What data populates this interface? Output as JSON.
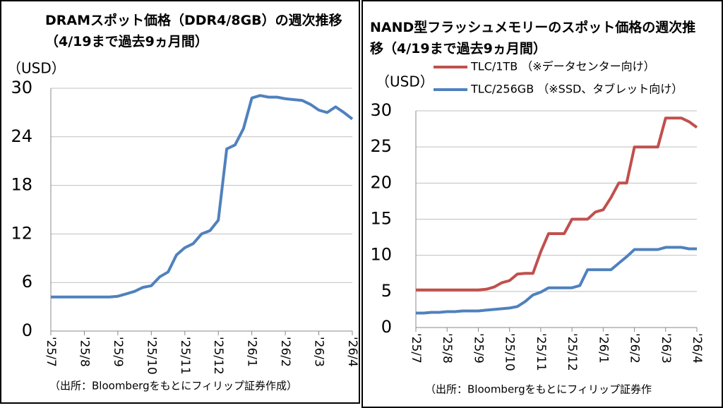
{
  "chart_data": [
    {
      "type": "line",
      "title": "DRAMスポット価格（DDR4/8GB）の週次推移（4/19まで過去9ヵ月間）",
      "y_label": "（USD）",
      "source": "（出所：Bloombergをもとにフィリップ証券作成）",
      "categories": [
        "'25/7",
        null,
        null,
        null,
        "'25/8",
        null,
        null,
        null,
        "'25/9",
        null,
        null,
        null,
        "'25/10",
        null,
        null,
        null,
        "'25/11",
        null,
        null,
        null,
        "'25/12",
        null,
        null,
        null,
        "'26/1",
        null,
        null,
        null,
        "'26/2",
        null,
        null,
        null,
        "'26/3",
        null,
        null,
        null,
        "'26/4"
      ],
      "values": [
        4.2,
        4.2,
        4.2,
        4.2,
        4.2,
        4.2,
        4.2,
        4.2,
        4.3,
        4.6,
        4.9,
        5.4,
        5.6,
        6.7,
        7.3,
        9.4,
        10.3,
        10.8,
        12.0,
        12.4,
        13.7,
        22.5,
        23.0,
        25.0,
        28.8,
        29.1,
        28.9,
        28.9,
        28.7,
        28.6,
        28.5,
        28.0,
        27.3,
        27.0,
        27.7,
        27.0,
        26.2
      ],
      "color": "#4f81bd",
      "ylim": [
        0,
        30
      ],
      "yticks": [
        0,
        6,
        12,
        18,
        24,
        30
      ],
      "grid": true
    },
    {
      "type": "line",
      "title": "NAND型フラッシュメモリーのスポット価格の週次推移（4/19まで過去9ヵ月間）",
      "y_label": "（USD）",
      "source": "（出所：Bloombergをもとにフィリップ証券作",
      "categories": [
        "'25/7",
        null,
        null,
        null,
        "'25/8",
        null,
        null,
        null,
        "'25/9",
        null,
        null,
        null,
        "'25/10",
        null,
        null,
        null,
        "'25/11",
        null,
        null,
        null,
        "'25/12",
        null,
        null,
        null,
        "'26/1",
        null,
        null,
        null,
        "'26/2",
        null,
        null,
        null,
        "'26/3",
        null,
        null,
        null,
        "'26/4"
      ],
      "series": [
        {
          "name": "TLC/1TB （※データセンター向け）",
          "color": "#c0504d",
          "values": [
            5.2,
            5.2,
            5.2,
            5.2,
            5.2,
            5.2,
            5.2,
            5.2,
            5.2,
            5.3,
            5.6,
            6.2,
            6.5,
            7.4,
            7.5,
            7.5,
            10.5,
            13.0,
            13.0,
            13.0,
            15.0,
            15.0,
            15.0,
            16.0,
            16.3,
            18.0,
            20.0,
            20.0,
            25.0,
            25.0,
            25.0,
            25.0,
            29.0,
            29.0,
            29.0,
            28.5,
            27.7
          ]
        },
        {
          "name": "TLC/256GB （※SSD、タブレット向け）",
          "color": "#4f81bd",
          "values": [
            2.0,
            2.0,
            2.1,
            2.1,
            2.2,
            2.2,
            2.3,
            2.3,
            2.3,
            2.4,
            2.5,
            2.6,
            2.7,
            2.9,
            3.6,
            4.5,
            4.9,
            5.5,
            5.5,
            5.5,
            5.5,
            5.8,
            8.0,
            8.0,
            8.0,
            8.0,
            8.9,
            9.8,
            10.8,
            10.8,
            10.8,
            10.8,
            11.1,
            11.1,
            11.1,
            10.9,
            10.9
          ]
        }
      ],
      "legend": "top",
      "ylim": [
        0,
        30
      ],
      "yticks": [
        0,
        5,
        10,
        15,
        20,
        25,
        30
      ],
      "grid": true
    }
  ]
}
